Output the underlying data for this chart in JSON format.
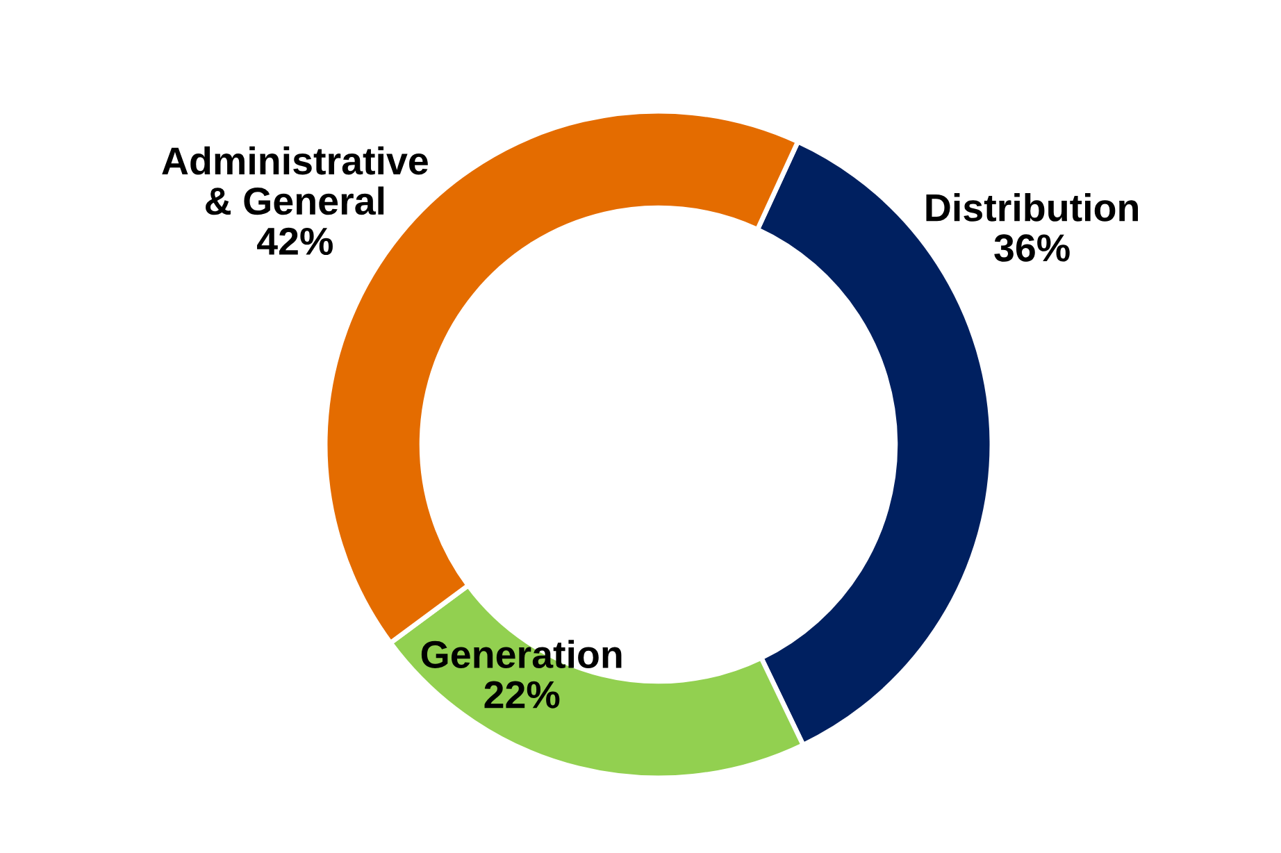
{
  "chart_data": {
    "type": "donut",
    "categories": [
      "Distribution",
      "Generation",
      "Administrative\n& General"
    ],
    "values": [
      36,
      22,
      42
    ],
    "colors": [
      "#002060",
      "#92d050",
      "#e46c00"
    ],
    "value_labels": [
      "36%",
      "22%",
      "42%"
    ]
  }
}
